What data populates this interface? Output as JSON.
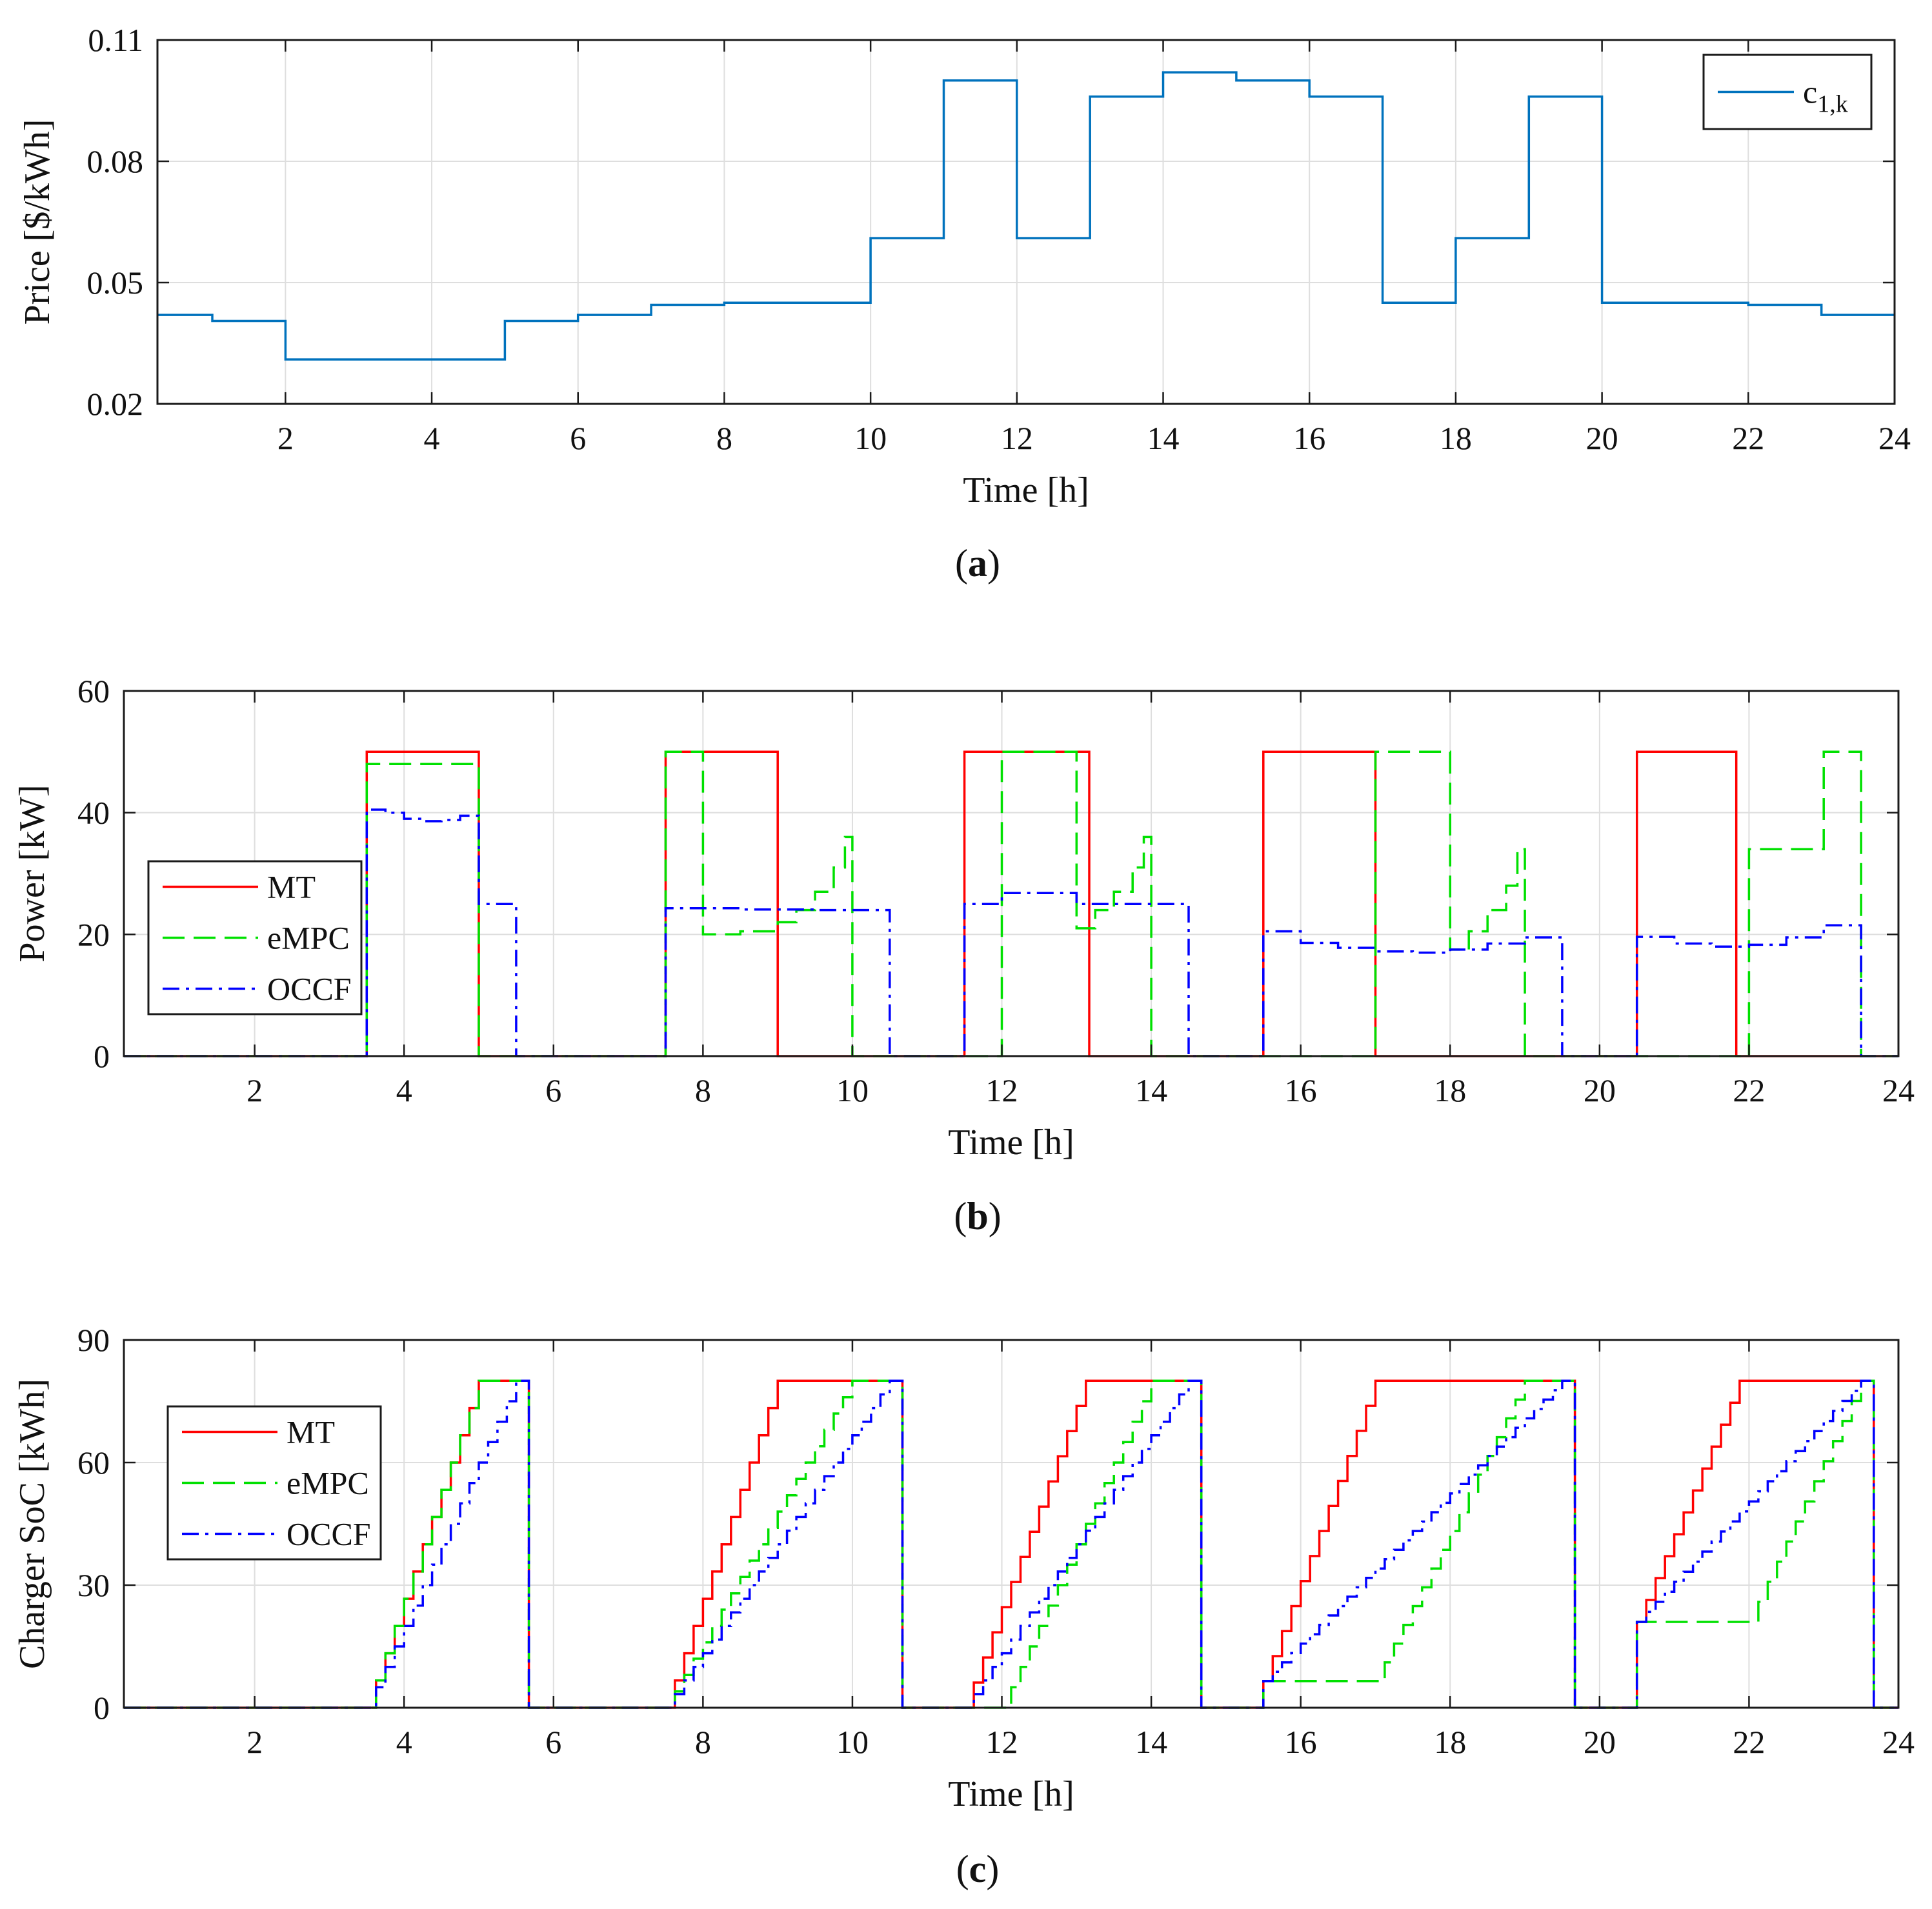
{
  "chart_data": [
    {
      "type": "line",
      "step": true,
      "title": "",
      "caption": "a",
      "xlabel": "Time [h]",
      "ylabel": "Price [$/kWh]",
      "xlim": [
        0.25,
        24
      ],
      "ylim": [
        0.02,
        0.11
      ],
      "xticks": [
        2,
        4,
        6,
        8,
        10,
        12,
        14,
        16,
        18,
        20,
        22,
        24
      ],
      "yticks": [
        0.02,
        0.05,
        0.08,
        0.11
      ],
      "ytick_labels": [
        "0.02",
        "0.05",
        "0.08",
        "0.11"
      ],
      "grid": true,
      "legend_position": "top-right",
      "series": [
        {
          "name": "c_{1,k}",
          "label_main": "c",
          "label_sub": "1,k",
          "color": "#0072BD",
          "dash": "solid",
          "x": [
            0.25,
            1,
            2,
            5,
            6,
            7,
            8,
            10,
            11,
            12,
            13,
            14,
            15,
            16,
            17,
            18,
            19,
            20,
            22,
            23,
            24
          ],
          "y": [
            0.042,
            0.0405,
            0.031,
            0.0405,
            0.042,
            0.0445,
            0.045,
            0.061,
            0.1,
            0.061,
            0.096,
            0.102,
            0.1,
            0.096,
            0.045,
            0.061,
            0.096,
            0.045,
            0.0445,
            0.042,
            0.042
          ]
        }
      ]
    },
    {
      "type": "line",
      "step": true,
      "title": "",
      "caption": "b",
      "xlabel": "Time [h]",
      "ylabel": "Power [kW]",
      "xlim": [
        0.25,
        24
      ],
      "ylim": [
        0,
        60
      ],
      "xticks": [
        2,
        4,
        6,
        8,
        10,
        12,
        14,
        16,
        18,
        20,
        22,
        24
      ],
      "yticks": [
        0,
        20,
        40,
        60
      ],
      "ytick_labels": [
        "0",
        "20",
        "40",
        "60"
      ],
      "grid": true,
      "legend_position": "center-left",
      "series": [
        {
          "name": "MT",
          "color": "#FF0000",
          "dash": "solid",
          "x": [
            0.25,
            3.5,
            5,
            7.5,
            9,
            11.5,
            13.17,
            15.5,
            17,
            20.5,
            21.83,
            24
          ],
          "y": [
            0,
            50,
            0,
            50,
            0,
            50,
            0,
            50,
            0,
            50,
            0,
            0
          ]
        },
        {
          "name": "eMPC",
          "color": "#00E000",
          "dash": "dashed",
          "x": [
            0.25,
            3.5,
            5,
            7.5,
            8,
            8.5,
            9,
            9.25,
            9.5,
            9.75,
            9.9,
            10,
            12,
            13,
            13.25,
            13.5,
            13.75,
            13.9,
            14,
            17,
            18,
            18.25,
            18.5,
            18.75,
            18.9,
            19,
            21.83,
            22,
            23,
            23.5,
            24
          ],
          "y": [
            0,
            48,
            0,
            50,
            20,
            20.5,
            22,
            24,
            27,
            31,
            36,
            0,
            50,
            21,
            24,
            27,
            31,
            36,
            0,
            50,
            17.5,
            20.5,
            24,
            28,
            34,
            0,
            0,
            34,
            50,
            0,
            0
          ]
        },
        {
          "name": "OCCF",
          "color": "#0000FF",
          "dash": "dashdot",
          "x": [
            0.25,
            3.5,
            3.75,
            4,
            4.25,
            4.5,
            4.75,
            5,
            5.5,
            7.5,
            8.5,
            9.5,
            10.5,
            11.5,
            12,
            13,
            14.5,
            15.5,
            16,
            16.5,
            17,
            17.5,
            18,
            18.5,
            19,
            19.5,
            20.5,
            21,
            21.5,
            22,
            22.5,
            23,
            23.5,
            24
          ],
          "y": [
            0,
            40.5,
            40,
            39,
            38.6,
            38.8,
            39.5,
            25,
            0,
            24.3,
            24.1,
            24,
            0,
            25,
            26.8,
            25,
            0,
            20.5,
            18.6,
            17.8,
            17.2,
            17,
            17.5,
            18.5,
            19.5,
            0,
            19.6,
            18.5,
            18,
            18.3,
            19.5,
            21.5,
            0,
            0
          ]
        }
      ]
    },
    {
      "type": "line",
      "step": true,
      "title": "",
      "caption": "c",
      "xlabel": "Time [h]",
      "ylabel": "Charger SoC [kWh]",
      "xlim": [
        0.25,
        24
      ],
      "ylim": [
        0,
        90
      ],
      "xticks": [
        2,
        4,
        6,
        8,
        10,
        12,
        14,
        16,
        18,
        20,
        22,
        24
      ],
      "yticks": [
        0,
        30,
        60,
        90
      ],
      "ytick_labels": [
        "0",
        "30",
        "60",
        "90"
      ],
      "grid": true,
      "legend_position": "center-left",
      "series": [
        {
          "name": "MT",
          "color": "#FF0000",
          "dash": "solid",
          "sessions": [
            {
              "start": 3.5,
              "end": 5.67,
              "start_soc": 0,
              "full_at": 5.0,
              "increment": 8.33,
              "step_h": 0.125
            },
            {
              "start": 7.5,
              "end": 10.67,
              "start_soc": 0,
              "full_at": 9.0,
              "increment": 8.33,
              "step_h": 0.125
            },
            {
              "start": 11.5,
              "end": 14.67,
              "start_soc": 0,
              "full_at": 13.17,
              "increment": 8.33,
              "step_h": 0.125
            },
            {
              "start": 15.5,
              "end": 19.67,
              "start_soc": 6.5,
              "full_at": 17.0,
              "increment": 8.33,
              "step_h": 0.125
            },
            {
              "start": 20.5,
              "end": 23.67,
              "start_soc": 21,
              "full_at": 21.83,
              "increment": 8.33,
              "step_h": 0.125
            }
          ]
        },
        {
          "name": "eMPC",
          "color": "#00E000",
          "dash": "dashed",
          "sessions": [
            {
              "start": 3.5,
              "end": 5.67,
              "start_soc": 0,
              "hold_until": 3.5,
              "full_at": 5.0,
              "step_h": 0.125
            },
            {
              "start": 7.5,
              "end": 10.67,
              "start_soc": 0,
              "hold_until": 7.5,
              "full_at": 10.0,
              "step_h": 0.125
            },
            {
              "start": 11.5,
              "end": 14.67,
              "start_soc": 0,
              "hold_until": 12.0,
              "full_at": 14.0,
              "step_h": 0.125
            },
            {
              "start": 15.5,
              "end": 19.67,
              "start_soc": 6.5,
              "hold_until": 17.0,
              "full_at": 19.0,
              "step_h": 0.125
            },
            {
              "start": 20.5,
              "end": 23.67,
              "start_soc": 21,
              "hold_until": 22.0,
              "full_at": 23.5,
              "step_h": 0.125
            }
          ]
        },
        {
          "name": "OCCF",
          "color": "#0000FF",
          "dash": "dashdot",
          "sessions": [
            {
              "start": 3.5,
              "end": 5.67,
              "start_soc": 0,
              "hold_until": 3.5,
              "full_at": 5.5,
              "step_h": 0.125
            },
            {
              "start": 7.5,
              "end": 10.67,
              "start_soc": 0,
              "hold_until": 7.5,
              "full_at": 10.5,
              "step_h": 0.125
            },
            {
              "start": 11.5,
              "end": 14.67,
              "start_soc": 0,
              "hold_until": 11.5,
              "full_at": 14.5,
              "step_h": 0.125
            },
            {
              "start": 15.5,
              "end": 19.67,
              "start_soc": 6.5,
              "hold_until": 15.5,
              "full_at": 19.5,
              "step_h": 0.125
            },
            {
              "start": 20.5,
              "end": 23.67,
              "start_soc": 21,
              "hold_until": 20.5,
              "full_at": 23.5,
              "step_h": 0.125
            }
          ]
        }
      ]
    }
  ]
}
